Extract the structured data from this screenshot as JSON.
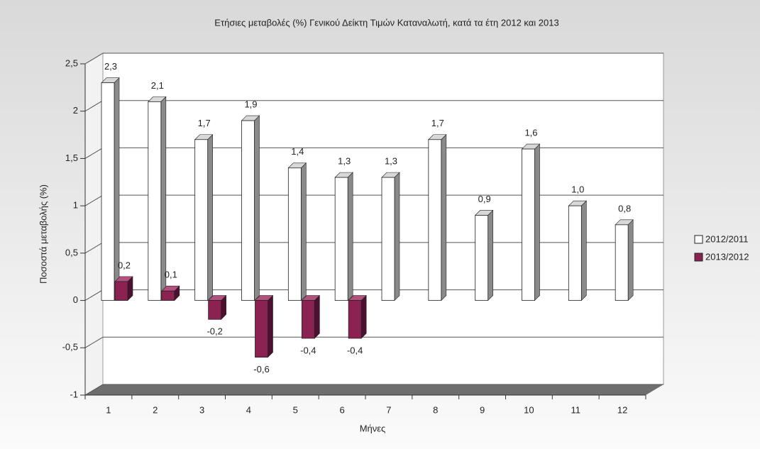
{
  "chart_data": {
    "type": "bar",
    "title": "Ετήσιες μεταβολές (%) Γενικού Δείκτη Τιμών Καταναλωτή, κατά τα έτη 2012 και 2013",
    "x_label": "Μήνες",
    "y_label": "Ποσοστά μεταβολής (%)",
    "categories": [
      "1",
      "2",
      "3",
      "4",
      "5",
      "6",
      "7",
      "8",
      "9",
      "10",
      "11",
      "12"
    ],
    "series": [
      {
        "name": "2012/2011",
        "color": "#ffffff",
        "values": [
          2.3,
          2.1,
          1.7,
          1.9,
          1.4,
          1.3,
          1.3,
          1.7,
          0.9,
          1.6,
          1.0,
          0.8
        ],
        "value_labels": [
          "2,3",
          "2,1",
          "1,7",
          "1,9",
          "1,4",
          "1,3",
          "1,3",
          "1,7",
          "0,9",
          "1,6",
          "1,0",
          "0,8"
        ]
      },
      {
        "name": "2013/2012",
        "color": "#8b2252",
        "values": [
          0.2,
          0.1,
          -0.2,
          -0.6,
          -0.4,
          -0.4,
          null,
          null,
          null,
          null,
          null,
          null
        ],
        "value_labels": [
          "0,2",
          "0,1",
          "-0,2",
          "-0,6",
          "-0,4",
          "-0,4",
          null,
          null,
          null,
          null,
          null,
          null
        ]
      }
    ],
    "ylim": [
      -1,
      2.5
    ],
    "yticks": [
      -1,
      {
        "value": -0.5,
        "label": "-0,5"
      },
      0,
      {
        "value": 0.5,
        "label": "0,5"
      },
      1,
      {
        "value": 1.5,
        "label": "1,5"
      },
      2,
      {
        "value": 2.5,
        "label": "2,5"
      }
    ],
    "grid": true
  }
}
